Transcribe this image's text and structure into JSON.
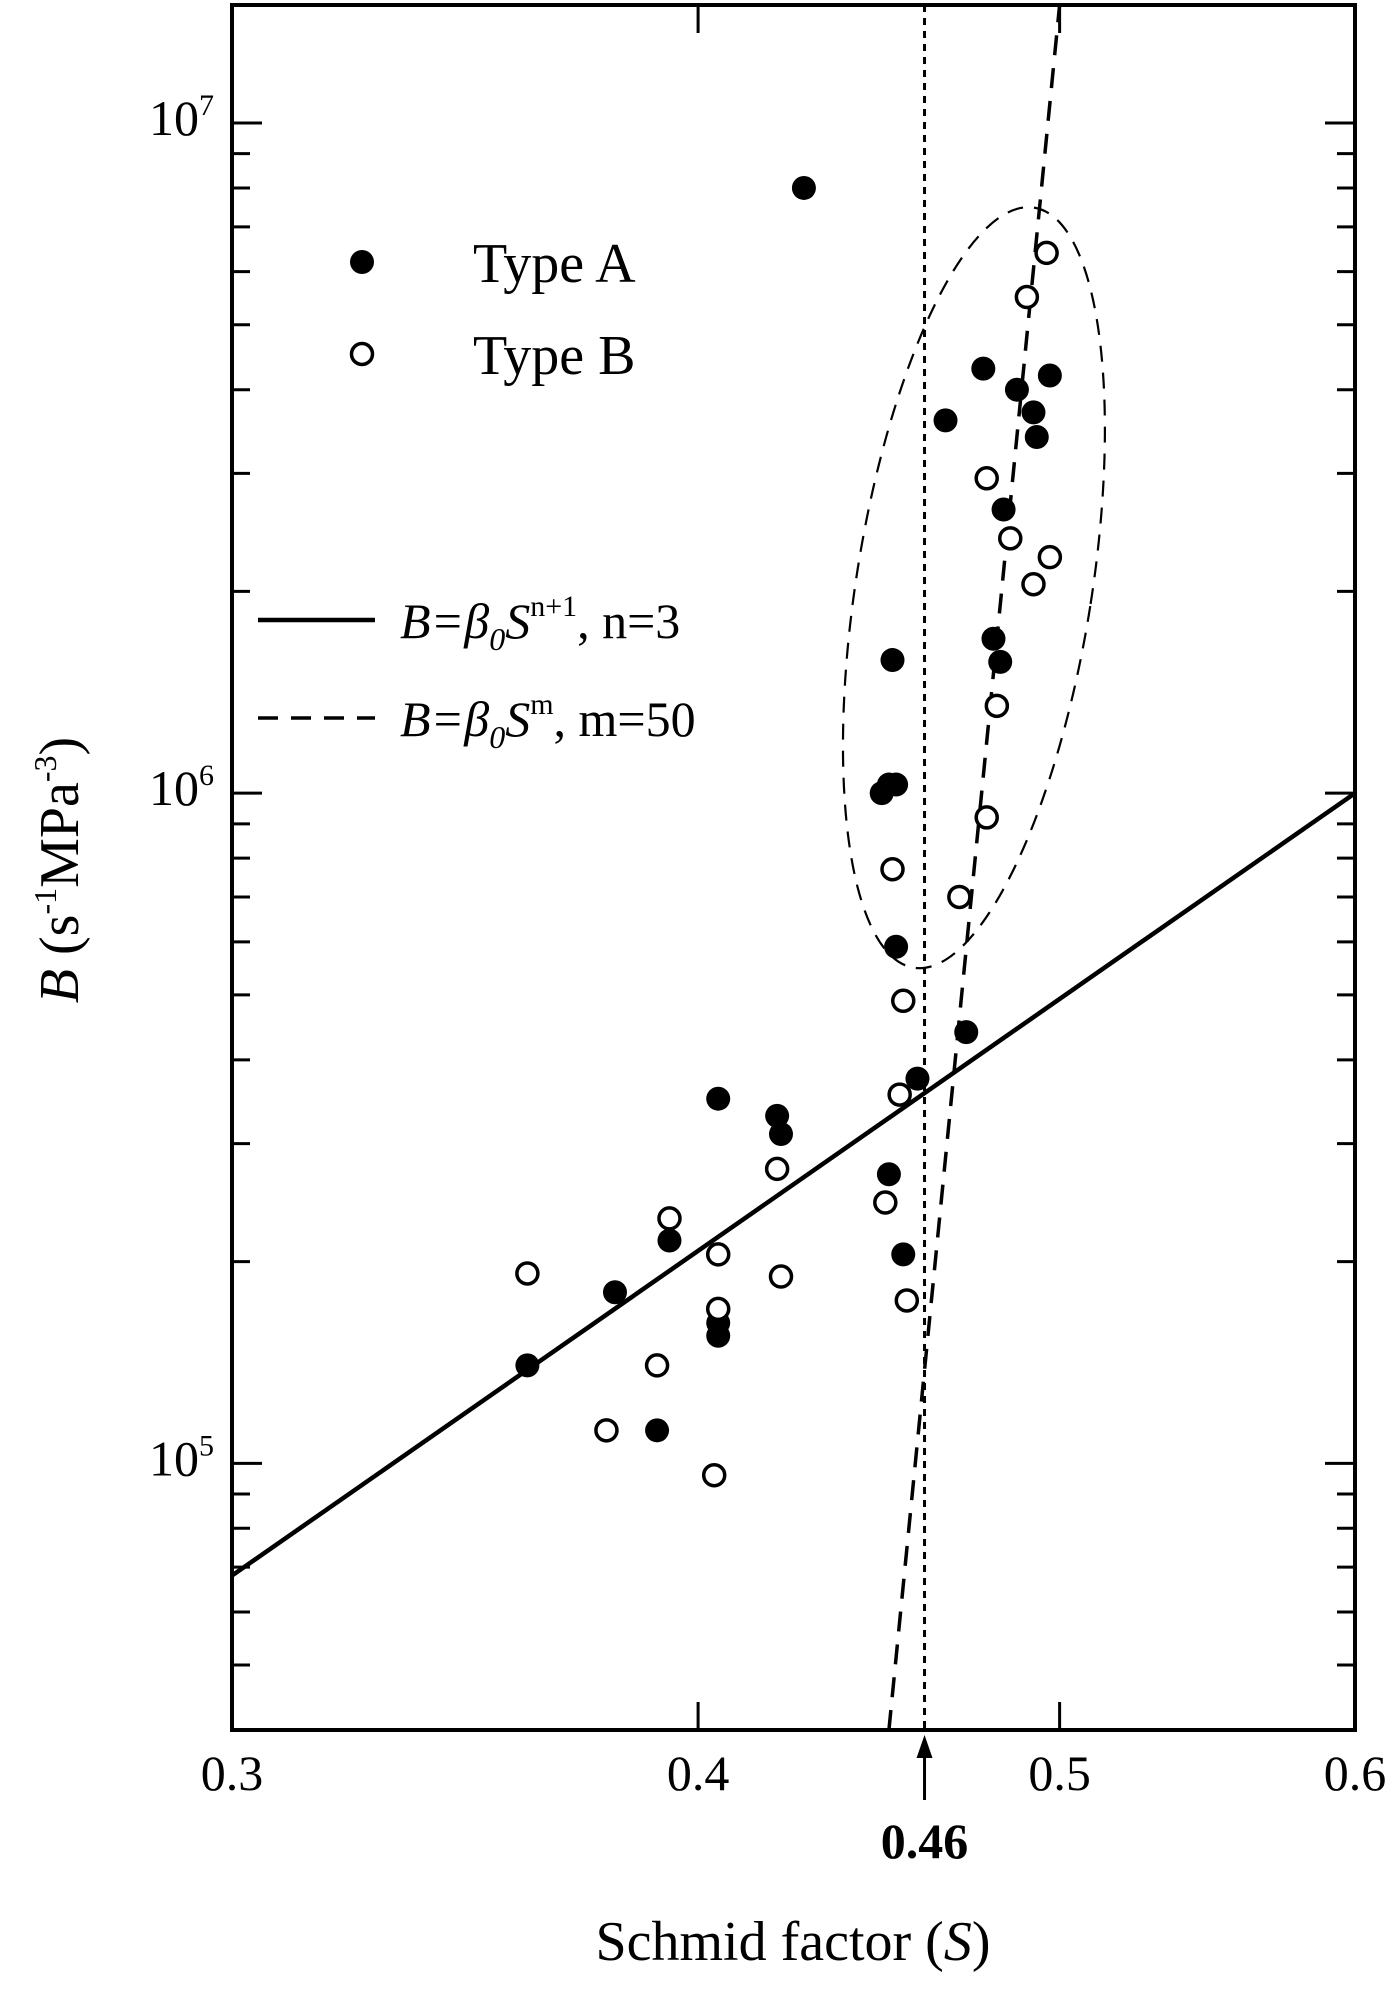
{
  "chart_data": {
    "type": "scatter",
    "xlabel": {
      "prefix": "Schmid factor (",
      "var": "S",
      "suffix": ")"
    },
    "ylabel": {
      "var": "B",
      "rest": " (s",
      "exp1": "-1",
      "mid": "MPa",
      "exp2": "-3",
      "close": ")"
    },
    "xscale": "log",
    "yscale": "log",
    "xlim": [
      0.3,
      0.6
    ],
    "ylim": [
      40000,
      15000000
    ],
    "x_ticks": [
      {
        "value": 0.3,
        "label": "0.3"
      },
      {
        "value": 0.4,
        "label": "0.4"
      },
      {
        "value": 0.5,
        "label": "0.5"
      },
      {
        "value": 0.6,
        "label": "0.6"
      }
    ],
    "y_ticks": [
      {
        "value": 100000,
        "base": "10",
        "exp": "5"
      },
      {
        "value": 1000000,
        "base": "10",
        "exp": "6"
      },
      {
        "value": 10000000,
        "base": "10",
        "exp": "7"
      }
    ],
    "marker_annotation": {
      "x": 0.46,
      "label": "0.46"
    },
    "legend": {
      "position": "upper-left",
      "markers": [
        {
          "label": "Type A",
          "style": "filled"
        },
        {
          "label": "Type B",
          "style": "open"
        }
      ],
      "lines": [
        {
          "pre": "B=β",
          "sub": "0",
          "mid": "S",
          "sup": "n+1",
          "post": ", n=3",
          "style": "solid"
        },
        {
          "pre": "B=β",
          "sub": "0",
          "mid": "S",
          "sup": "m",
          "post": ", m=50",
          "style": "dashed"
        }
      ]
    },
    "series": [
      {
        "name": "Type A",
        "marker": "filled",
        "points": [
          [
            0.36,
            140000
          ],
          [
            0.38,
            180000
          ],
          [
            0.39,
            112000
          ],
          [
            0.393,
            215000
          ],
          [
            0.405,
            155000
          ],
          [
            0.405,
            350000
          ],
          [
            0.405,
            162000
          ],
          [
            0.42,
            330000
          ],
          [
            0.421,
            310000
          ],
          [
            0.427,
            8000000
          ],
          [
            0.448,
            1000000
          ],
          [
            0.45,
            1030000
          ],
          [
            0.451,
            1580000
          ],
          [
            0.452,
            1030000
          ],
          [
            0.452,
            590000
          ],
          [
            0.45,
            270000
          ],
          [
            0.454,
            205000
          ],
          [
            0.458,
            375000
          ],
          [
            0.466,
            3600000
          ],
          [
            0.472,
            440000
          ],
          [
            0.477,
            4300000
          ],
          [
            0.48,
            1700000
          ],
          [
            0.482,
            1570000
          ],
          [
            0.483,
            2650000
          ],
          [
            0.487,
            4000000
          ],
          [
            0.492,
            3700000
          ],
          [
            0.493,
            3400000
          ],
          [
            0.497,
            4200000
          ]
        ]
      },
      {
        "name": "Type B",
        "marker": "open",
        "points": [
          [
            0.36,
            192000
          ],
          [
            0.378,
            112000
          ],
          [
            0.39,
            140000
          ],
          [
            0.393,
            232000
          ],
          [
            0.404,
            96000
          ],
          [
            0.405,
            205000
          ],
          [
            0.405,
            170000
          ],
          [
            0.42,
            275000
          ],
          [
            0.421,
            190000
          ],
          [
            0.449,
            245000
          ],
          [
            0.451,
            770000
          ],
          [
            0.453,
            355000
          ],
          [
            0.454,
            490000
          ],
          [
            0.455,
            175000
          ],
          [
            0.47,
            700000
          ],
          [
            0.478,
            2950000
          ],
          [
            0.478,
            920000
          ],
          [
            0.481,
            1350000
          ],
          [
            0.485,
            2400000
          ],
          [
            0.49,
            5500000
          ],
          [
            0.492,
            2050000
          ],
          [
            0.496,
            6400000
          ],
          [
            0.497,
            2250000
          ]
        ]
      }
    ],
    "lines": [
      {
        "type": "power_law",
        "style": "solid",
        "exponent": 4,
        "x_range": [
          0.3,
          0.6
        ],
        "y_range": [
          68000,
          1000000
        ]
      },
      {
        "type": "power_law",
        "style": "dashed",
        "exponent": 50,
        "x_range": [
          0.45,
          0.5
        ],
        "y_range": [
          40000,
          15000000
        ]
      },
      {
        "type": "vertical",
        "style": "dotted",
        "x": 0.46
      }
    ],
    "ellipse": {
      "style": "dashed",
      "center": [
        0.474,
        2000000
      ],
      "x_span": [
        0.441,
        0.51
      ],
      "y_span": [
        540000,
        7600000
      ],
      "tilt": "slight"
    }
  }
}
